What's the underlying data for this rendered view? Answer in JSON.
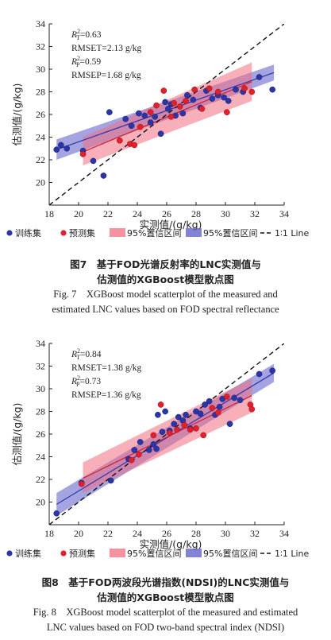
{
  "chart_data": [
    {
      "type": "scatter",
      "xlabel": "实测值/(g/kg)",
      "ylabel": "估测值/(g/kg)",
      "xlim": [
        18,
        34
      ],
      "ylim": [
        18,
        34
      ],
      "xticks": [
        "18",
        "20",
        "22",
        "24",
        "26",
        "28",
        "30",
        "32",
        "34"
      ],
      "yticks": [
        "20",
        "22",
        "24",
        "26",
        "28",
        "30",
        "32",
        "34"
      ],
      "stats": [
        {
          "label": "R",
          "sub": "T",
          "sup": "2",
          "value": "=0.63"
        },
        {
          "label": "RMSET=2.13 g/kg"
        },
        {
          "label": "R",
          "sub": "P",
          "sup": "2",
          "value": "=0.59"
        },
        {
          "label": "RMSEP=1.68 g/kg"
        }
      ],
      "legend": [
        "训练集",
        "预测集",
        "95%置信区间",
        "95%置信区间",
        "1∶1 Line"
      ],
      "series": [
        {
          "name": "训练集",
          "color": "#2b35a8",
          "points": [
            [
              18.5,
              22.9
            ],
            [
              18.8,
              23.3
            ],
            [
              19.2,
              23.0
            ],
            [
              20.3,
              22.8
            ],
            [
              21.0,
              21.9
            ],
            [
              21.7,
              20.6
            ],
            [
              22.1,
              26.2
            ],
            [
              23.2,
              25.6
            ],
            [
              23.6,
              25.0
            ],
            [
              24.1,
              26.1
            ],
            [
              24.5,
              25.9
            ],
            [
              24.9,
              25.3
            ],
            [
              25.2,
              25.8
            ],
            [
              25.6,
              24.3
            ],
            [
              25.9,
              27.1
            ],
            [
              26.1,
              26.5
            ],
            [
              26.3,
              26.9
            ],
            [
              26.6,
              25.9
            ],
            [
              27.1,
              26.1
            ],
            [
              27.4,
              27.7
            ],
            [
              27.8,
              27.3
            ],
            [
              28.3,
              26.6
            ],
            [
              28.7,
              28.1
            ],
            [
              29.1,
              27.4
            ],
            [
              29.5,
              27.7
            ],
            [
              29.9,
              27.5
            ],
            [
              30.2,
              27.2
            ],
            [
              30.7,
              28.2
            ],
            [
              31.2,
              28.0
            ],
            [
              32.3,
              29.3
            ],
            [
              33.2,
              28.2
            ]
          ]
        },
        {
          "name": "预测集",
          "color": "#e0202a",
          "points": [
            [
              20.3,
              22.5
            ],
            [
              22.8,
              23.7
            ],
            [
              23.5,
              23.4
            ],
            [
              23.8,
              23.3
            ],
            [
              24.2,
              24.9
            ],
            [
              24.9,
              26.2
            ],
            [
              25.3,
              26.8
            ],
            [
              25.8,
              28.1
            ],
            [
              26.3,
              25.8
            ],
            [
              26.5,
              27.0
            ],
            [
              26.9,
              26.7
            ],
            [
              27.3,
              27.2
            ],
            [
              27.9,
              28.2
            ],
            [
              28.4,
              26.5
            ],
            [
              28.9,
              28.3
            ],
            [
              29.5,
              28.0
            ],
            [
              30.1,
              26.2
            ],
            [
              31.3,
              28.3
            ],
            [
              31.8,
              28.0
            ]
          ]
        }
      ],
      "fits": [
        {
          "name": "训练集拟合",
          "x": [
            18.5,
            33.3
          ],
          "y": [
            22.9,
            29.7
          ],
          "ci_lo": [
            22.0,
            29.0
          ],
          "ci_hi": [
            23.8,
            30.4
          ],
          "color": "#4a4ac0"
        },
        {
          "name": "预测集拟合",
          "x": [
            20.3,
            31.8
          ],
          "y": [
            22.7,
            28.9
          ],
          "ci_lo": [
            21.5,
            27.2
          ],
          "ci_hi": [
            24.0,
            30.6
          ],
          "color": "#e05060"
        }
      ]
    },
    {
      "type": "scatter",
      "xlabel": "实测值/(g/kg)",
      "ylabel": "估测值/(g/kg)",
      "xlim": [
        18,
        34
      ],
      "ylim": [
        18,
        34
      ],
      "xticks": [
        "18",
        "20",
        "22",
        "24",
        "26",
        "28",
        "30",
        "32",
        "34"
      ],
      "yticks": [
        "20",
        "22",
        "24",
        "26",
        "28",
        "30",
        "32",
        "34"
      ],
      "stats": [
        {
          "label": "R",
          "sub": "T",
          "sup": "2",
          "value": "=0.84"
        },
        {
          "label": "RMSET=1.38 g/kg"
        },
        {
          "label": "R",
          "sub": "P",
          "sup": "2",
          "value": "=0.73"
        },
        {
          "label": "RMSEP=1.36 g/kg"
        }
      ],
      "legend": [
        "训练集",
        "预测集",
        "95%置信区间",
        "95%置信区间",
        "1∶1 Line"
      ],
      "series": [
        {
          "name": "训练集",
          "color": "#2b35a8",
          "points": [
            [
              18.5,
              19.0
            ],
            [
              20.2,
              21.7
            ],
            [
              22.2,
              21.9
            ],
            [
              23.4,
              23.8
            ],
            [
              23.8,
              24.6
            ],
            [
              24.2,
              25.3
            ],
            [
              24.8,
              24.6
            ],
            [
              25.1,
              25.1
            ],
            [
              25.3,
              24.7
            ],
            [
              25.4,
              27.7
            ],
            [
              25.7,
              26.2
            ],
            [
              25.9,
              28.0
            ],
            [
              26.2,
              26.3
            ],
            [
              26.5,
              26.9
            ],
            [
              26.8,
              27.5
            ],
            [
              27.1,
              27.2
            ],
            [
              27.3,
              27.7
            ],
            [
              27.6,
              26.5
            ],
            [
              28.0,
              28.0
            ],
            [
              28.3,
              27.8
            ],
            [
              28.6,
              28.6
            ],
            [
              28.9,
              28.9
            ],
            [
              29.3,
              27.7
            ],
            [
              29.6,
              28.4
            ],
            [
              29.8,
              29.1
            ],
            [
              30.3,
              26.9
            ],
            [
              30.6,
              29.2
            ],
            [
              31.0,
              29.0
            ],
            [
              32.3,
              31.3
            ],
            [
              33.2,
              31.6
            ]
          ]
        },
        {
          "name": "预测集",
          "color": "#e0202a",
          "points": [
            [
              20.2,
              21.6
            ],
            [
              23.6,
              23.7
            ],
            [
              24.1,
              24.2
            ],
            [
              25.1,
              25.9
            ],
            [
              25.6,
              28.6
            ],
            [
              26.2,
              26.1
            ],
            [
              26.7,
              26.4
            ],
            [
              27.2,
              26.8
            ],
            [
              27.6,
              26.4
            ],
            [
              28.0,
              26.5
            ],
            [
              28.5,
              25.9
            ],
            [
              29.1,
              28.3
            ],
            [
              29.5,
              27.9
            ],
            [
              30.1,
              29.3
            ],
            [
              31.7,
              28.6
            ],
            [
              31.8,
              28.2
            ]
          ]
        }
      ],
      "fits": [
        {
          "name": "训练集拟合",
          "x": [
            18.5,
            33.3
          ],
          "y": [
            19.8,
            31.4
          ],
          "ci_lo": [
            18.8,
            30.6
          ],
          "ci_hi": [
            20.8,
            32.2
          ],
          "color": "#4a4ac0"
        },
        {
          "name": "预测集拟合",
          "x": [
            20.3,
            31.8
          ],
          "y": [
            22.1,
            29.4
          ],
          "ci_lo": [
            20.8,
            27.9
          ],
          "ci_hi": [
            23.5,
            30.9
          ],
          "color": "#e05060"
        }
      ]
    }
  ],
  "captions": {
    "fig7_cn": "图7　基于FOD光谱反射率的LNC实测值与",
    "fig7_cn2": "估测值的XGBoost模型散点图",
    "fig7_en": "Fig. 7　XGBoost model scatterplot of the measured and",
    "fig7_en2": "estimated LNC values based on FOD spectral reflectance",
    "fig8_cn": "图8　基于FOD两波段光谱指数(NDSI)的LNC实测值与",
    "fig8_cn2": "估测值的XGBoost模型散点图",
    "fig8_en": "Fig. 8　XGBoost model scatterplot of the measured and estimated",
    "fig8_en2": "LNC values based on FOD two-band spectral index (NDSI)"
  }
}
